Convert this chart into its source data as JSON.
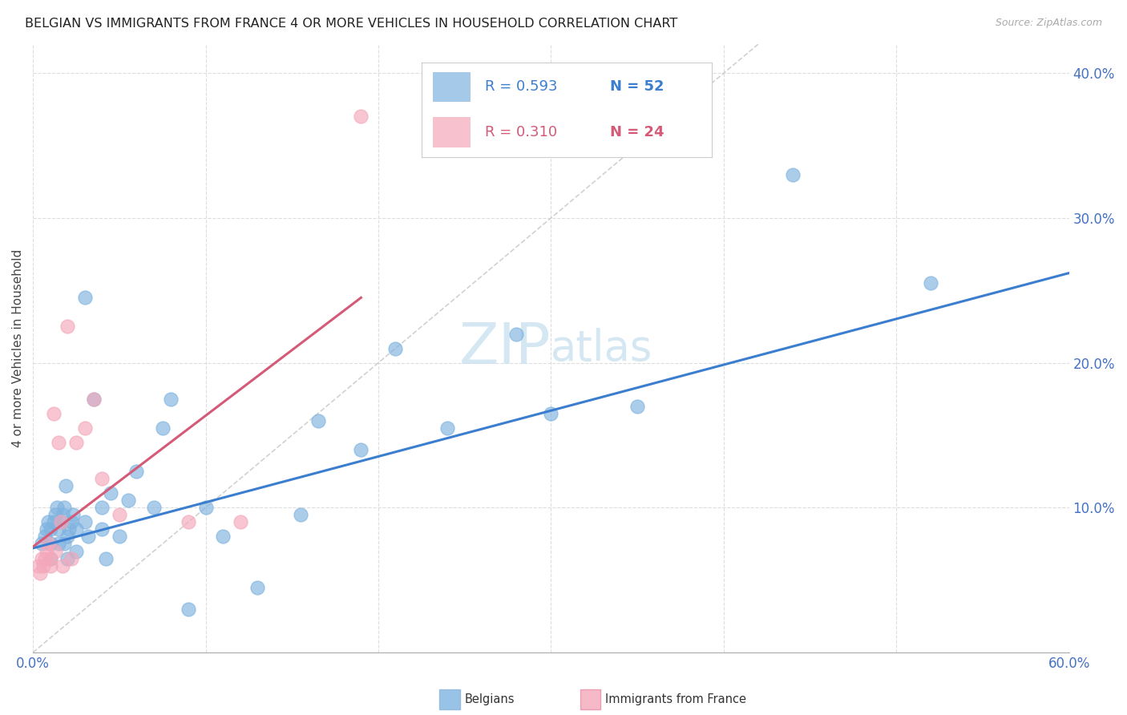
{
  "title": "BELGIAN VS IMMIGRANTS FROM FRANCE 4 OR MORE VEHICLES IN HOUSEHOLD CORRELATION CHART",
  "source": "Source: ZipAtlas.com",
  "ylabel": "4 or more Vehicles in Household",
  "xlim": [
    0.0,
    0.6
  ],
  "ylim": [
    0.0,
    0.42
  ],
  "yticks": [
    0.0,
    0.1,
    0.2,
    0.3,
    0.4
  ],
  "ytick_labels": [
    "",
    "10.0%",
    "20.0%",
    "30.0%",
    "40.0%"
  ],
  "xtick_labels_show": {
    "0.0": "0.0%",
    "0.6": "60.0%"
  },
  "legend_blue_R": "R = 0.593",
  "legend_blue_N": "N = 52",
  "legend_pink_R": "R = 0.310",
  "legend_pink_N": "N = 24",
  "diagonal_color": "#cccccc",
  "blue_color": "#7fb3e0",
  "pink_color": "#f4a8ba",
  "blue_line_color": "#3b7ecf",
  "pink_line_color": "#d45a78",
  "axis_label_color": "#4472c4",
  "watermark_color": "#cde3f0",
  "belgians_x": [
    0.005,
    0.007,
    0.008,
    0.009,
    0.01,
    0.01,
    0.01,
    0.012,
    0.013,
    0.014,
    0.015,
    0.015,
    0.016,
    0.017,
    0.018,
    0.018,
    0.019,
    0.02,
    0.02,
    0.021,
    0.022,
    0.023,
    0.025,
    0.025,
    0.03,
    0.03,
    0.032,
    0.035,
    0.04,
    0.04,
    0.042,
    0.045,
    0.05,
    0.055,
    0.06,
    0.07,
    0.075,
    0.08,
    0.09,
    0.1,
    0.11,
    0.13,
    0.155,
    0.165,
    0.19,
    0.21,
    0.24,
    0.28,
    0.3,
    0.35,
    0.44,
    0.52
  ],
  "belgians_y": [
    0.075,
    0.08,
    0.085,
    0.09,
    0.065,
    0.075,
    0.085,
    0.09,
    0.095,
    0.1,
    0.075,
    0.085,
    0.09,
    0.095,
    0.075,
    0.1,
    0.115,
    0.065,
    0.08,
    0.085,
    0.09,
    0.095,
    0.07,
    0.085,
    0.09,
    0.245,
    0.08,
    0.175,
    0.085,
    0.1,
    0.065,
    0.11,
    0.08,
    0.105,
    0.125,
    0.1,
    0.155,
    0.175,
    0.03,
    0.1,
    0.08,
    0.045,
    0.095,
    0.16,
    0.14,
    0.21,
    0.155,
    0.22,
    0.165,
    0.17,
    0.33,
    0.255
  ],
  "france_x": [
    0.003,
    0.004,
    0.005,
    0.006,
    0.007,
    0.008,
    0.009,
    0.01,
    0.01,
    0.012,
    0.013,
    0.015,
    0.016,
    0.017,
    0.02,
    0.022,
    0.025,
    0.03,
    0.035,
    0.04,
    0.05,
    0.09,
    0.12,
    0.19
  ],
  "france_y": [
    0.06,
    0.055,
    0.065,
    0.06,
    0.065,
    0.07,
    0.075,
    0.06,
    0.065,
    0.165,
    0.07,
    0.145,
    0.09,
    0.06,
    0.225,
    0.065,
    0.145,
    0.155,
    0.175,
    0.12,
    0.095,
    0.09,
    0.09,
    0.37
  ],
  "blue_line_x0": 0.0,
  "blue_line_x1": 0.6,
  "blue_line_y0": 0.072,
  "blue_line_y1": 0.262,
  "pink_line_x0": 0.0,
  "pink_line_x1": 0.19,
  "pink_line_y0": 0.073,
  "pink_line_y1": 0.245
}
